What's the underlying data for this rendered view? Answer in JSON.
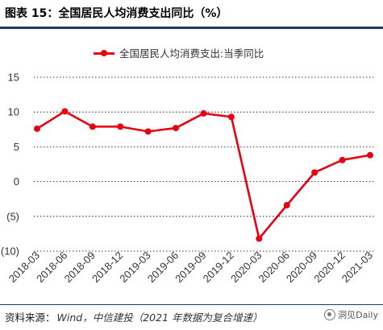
{
  "header": {
    "title": "图表 15：全国居民人均消费支出同比（%）"
  },
  "footer": {
    "source_prefix": "资料来源：",
    "source_text": "Wind，中信建投（2021 年数据为复合增速）",
    "watermark": "洞见Daily"
  },
  "colors": {
    "series": "#e60012",
    "grid": "#000000",
    "axis_text": "#333333",
    "rule": "#1f3864"
  },
  "chart_data": {
    "type": "line",
    "title": "",
    "xlabel": "",
    "ylabel": "",
    "ylim": [
      -10,
      15
    ],
    "grid": true,
    "grid_style": "dotted",
    "legend_position": "top",
    "y_ticks": [
      15,
      10,
      5,
      0,
      -5,
      -10
    ],
    "y_tick_labels": [
      "15",
      "10",
      "5",
      "0",
      "(5)",
      "(10)"
    ],
    "categories": [
      "2018-03",
      "2018-06",
      "2018-09",
      "2018-12",
      "2019-03",
      "2019-06",
      "2019-09",
      "2019-12",
      "2020-03",
      "2020-06",
      "2020-09",
      "2020-12",
      "2021-03"
    ],
    "series": [
      {
        "name": "全国居民人均消费支出:当季同比",
        "values": [
          7.6,
          10.1,
          7.9,
          7.9,
          7.2,
          7.7,
          9.8,
          9.3,
          -8.2,
          -3.4,
          1.3,
          3.1,
          3.8
        ]
      }
    ]
  }
}
